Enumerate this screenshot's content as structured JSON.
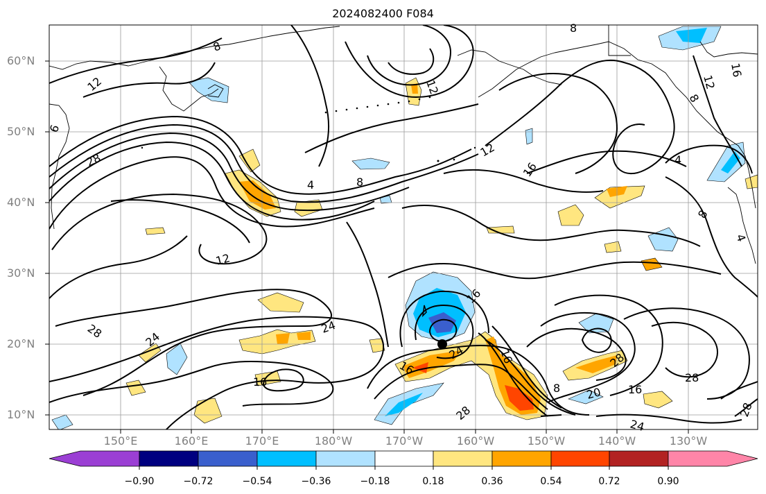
{
  "title": "2024082400 F084",
  "lat_labels": [
    "60°N",
    "50°N",
    "40°N",
    "30°N",
    "20°N",
    "10°N"
  ],
  "lon_labels": [
    "150°E",
    "160°E",
    "170°E",
    "180°W",
    "170°W",
    "160°W",
    "150°W",
    "140°W",
    "130°W"
  ],
  "contour_labels": [
    "8",
    "12",
    "12",
    "6",
    "28",
    "4",
    "8",
    "12",
    "16",
    "4",
    "8",
    "12",
    "16",
    "12",
    "28",
    "24",
    "24",
    "16",
    "16",
    "24",
    "16",
    "16",
    "8",
    "20",
    "28",
    "16",
    "28",
    "28",
    "28",
    "24",
    "4",
    "8",
    "8"
  ],
  "colorbar": {
    "ticks": [
      "−0.90",
      "−0.72",
      "−0.54",
      "−0.36",
      "−0.18",
      "0.18",
      "0.36",
      "0.54",
      "0.72",
      "0.90"
    ],
    "colors": [
      "#9b3fd4",
      "#000080",
      "#3a5fcd",
      "#00bfff",
      "#b0e2ff",
      "#ffffff",
      "#ffe680",
      "#ffa500",
      "#ff4500",
      "#b22222",
      "#ff85a8"
    ]
  }
}
